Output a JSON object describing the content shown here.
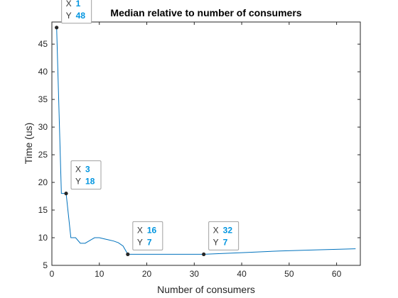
{
  "chart_data": {
    "type": "line",
    "title": "Median relative to number of consumers",
    "xlabel": "Number of consumers",
    "ylabel": "Time (us)",
    "xlim": [
      0,
      65
    ],
    "ylim": [
      5,
      49
    ],
    "xticks": [
      0,
      10,
      20,
      30,
      40,
      50,
      60
    ],
    "yticks": [
      5,
      10,
      15,
      20,
      25,
      30,
      35,
      40,
      45
    ],
    "grid": false,
    "series": [
      {
        "color": "#0072bd",
        "x": [
          1,
          2,
          3,
          4,
          5,
          6,
          7,
          8,
          9,
          10,
          11,
          12,
          13,
          14,
          15,
          16,
          20,
          24,
          28,
          32,
          40,
          48,
          56,
          64
        ],
        "y": [
          48,
          18,
          18,
          10,
          10,
          9,
          9,
          9.5,
          10,
          10,
          9.8,
          9.6,
          9.4,
          9.1,
          8.5,
          7,
          7,
          7,
          7,
          7,
          7.3,
          7.6,
          7.8,
          8
        ]
      }
    ],
    "datatips": [
      {
        "x_label": "X",
        "y_label": "Y",
        "x": "1",
        "y": "48"
      },
      {
        "x_label": "X",
        "y_label": "Y",
        "x": "3",
        "y": "18"
      },
      {
        "x_label": "X",
        "y_label": "Y",
        "x": "16",
        "y": "7"
      },
      {
        "x_label": "X",
        "y_label": "Y",
        "x": "32",
        "y": "7"
      }
    ]
  }
}
